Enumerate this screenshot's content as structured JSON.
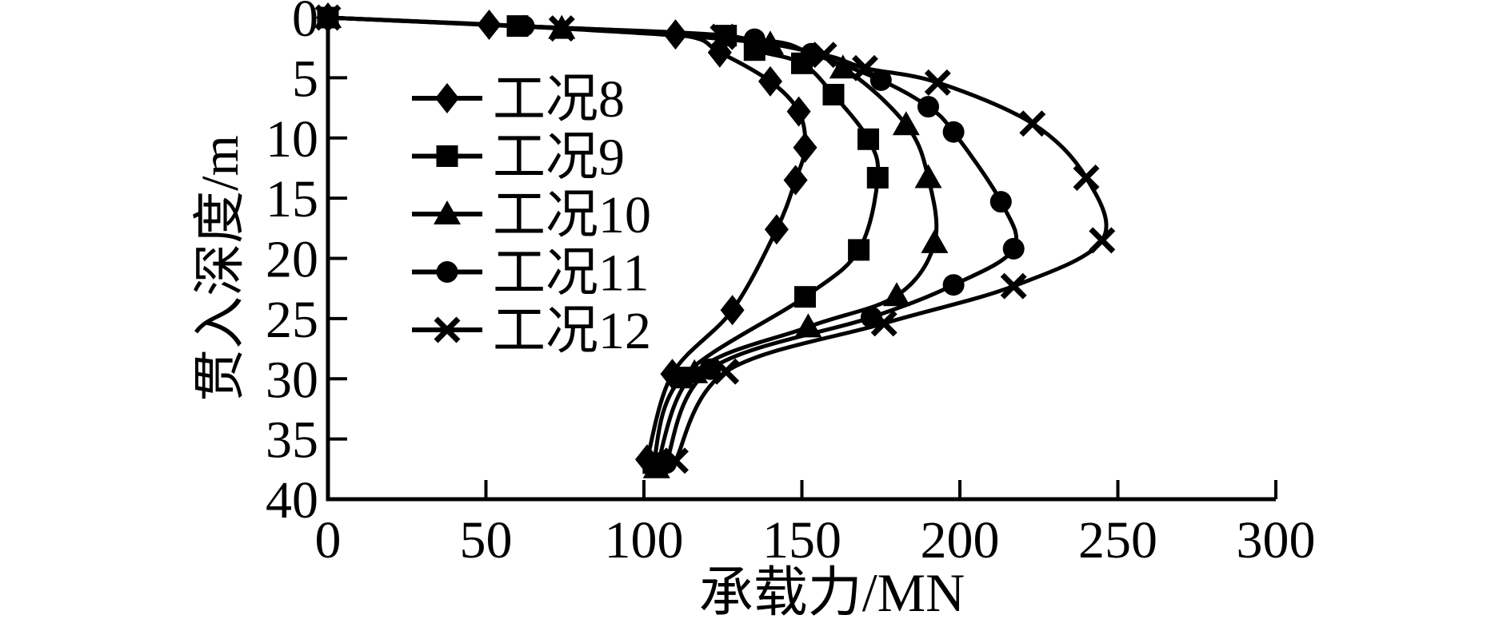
{
  "figure": {
    "background": "#ffffff",
    "line_color": "#000000",
    "text_color": "#000000"
  },
  "chart_data": {
    "type": "line",
    "title": "",
    "xlabel": "承载力/MN",
    "ylabel": "贯入深度/m",
    "xlim": [
      0,
      300
    ],
    "ylim": [
      0,
      40
    ],
    "y_inverted": true,
    "grid": false,
    "legend_position": "upper-left-inside",
    "xticks": [
      0,
      50,
      100,
      150,
      200,
      250,
      300
    ],
    "yticks": [
      0,
      5,
      10,
      15,
      20,
      25,
      30,
      35,
      40
    ],
    "series": [
      {
        "name": "工况8",
        "marker": "diamond",
        "points": [
          [
            0,
            0
          ],
          [
            51,
            0.6
          ],
          [
            110,
            1.4
          ],
          [
            124,
            2.9
          ],
          [
            140,
            5.3
          ],
          [
            149,
            7.8
          ],
          [
            151,
            10.8
          ],
          [
            148,
            13.5
          ],
          [
            142,
            17.6
          ],
          [
            128,
            24.3
          ],
          [
            109,
            29.6
          ],
          [
            101,
            36.7
          ]
        ]
      },
      {
        "name": "工况9",
        "marker": "square",
        "points": [
          [
            0,
            0
          ],
          [
            60,
            0.7
          ],
          [
            126,
            1.5
          ],
          [
            135,
            2.7
          ],
          [
            150,
            3.8
          ],
          [
            160,
            6.4
          ],
          [
            171,
            10.1
          ],
          [
            174,
            13.3
          ],
          [
            168,
            19.3
          ],
          [
            151,
            23.2
          ],
          [
            112,
            29.9
          ],
          [
            103,
            37.0
          ]
        ]
      },
      {
        "name": "工况10",
        "marker": "triangle",
        "points": [
          [
            0,
            0
          ],
          [
            74,
            0.9
          ],
          [
            140,
            2.2
          ],
          [
            163,
            4.2
          ],
          [
            183,
            8.9
          ],
          [
            190,
            13.3
          ],
          [
            192,
            18.7
          ],
          [
            180,
            23.1
          ],
          [
            152,
            25.7
          ],
          [
            116,
            29.5
          ],
          [
            104,
            37.4
          ]
        ]
      },
      {
        "name": "工况11",
        "marker": "circle",
        "points": [
          [
            0,
            0
          ],
          [
            62,
            0.7
          ],
          [
            135,
            1.8
          ],
          [
            153,
            3.0
          ],
          [
            175,
            5.2
          ],
          [
            190,
            7.4
          ],
          [
            198,
            9.5
          ],
          [
            213,
            15.3
          ],
          [
            217,
            19.2
          ],
          [
            198,
            22.2
          ],
          [
            172,
            24.9
          ],
          [
            121,
            29.2
          ],
          [
            107,
            37.0
          ]
        ]
      },
      {
        "name": "工况12",
        "marker": "cross",
        "points": [
          [
            0,
            0
          ],
          [
            74,
            0.9
          ],
          [
            125,
            1.6
          ],
          [
            157,
            3.1
          ],
          [
            170,
            4.2
          ],
          [
            193,
            5.4
          ],
          [
            223,
            8.8
          ],
          [
            240,
            13.3
          ],
          [
            245,
            18.5
          ],
          [
            217,
            22.3
          ],
          [
            176,
            25.4
          ],
          [
            126,
            29.4
          ],
          [
            110,
            36.8
          ]
        ]
      }
    ]
  }
}
